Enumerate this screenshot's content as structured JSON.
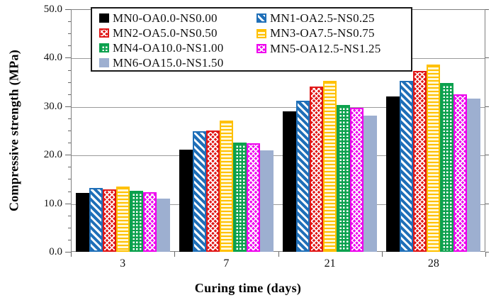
{
  "chart_data": {
    "type": "bar",
    "title": "",
    "xlabel": "Curing time (days)",
    "ylabel": "Compressive strength (MPa)",
    "categories": [
      "3",
      "7",
      "21",
      "28"
    ],
    "series": [
      {
        "name": "MN0-OA0.0-NS0.00",
        "color": "#000000",
        "pattern": "solid",
        "values": [
          12.1,
          21.0,
          29.0,
          32.0
        ]
      },
      {
        "name": "MN1-OA2.5-NS0.25",
        "color": "#1F6FB8",
        "pattern": "diagonal-stripe",
        "values": [
          13.2,
          24.8,
          31.2,
          35.3
        ]
      },
      {
        "name": "MN2-OA5.0-NS0.50",
        "color": "#E01818",
        "pattern": "diamond-lattice",
        "values": [
          12.9,
          25.0,
          34.0,
          37.3
        ]
      },
      {
        "name": "MN3-OA7.5-NS0.75",
        "color": "#FFC000",
        "pattern": "horizontal-stripe",
        "light": "#FFF8D6",
        "values": [
          13.4,
          27.0,
          35.2,
          38.6
        ]
      },
      {
        "name": "MN4-OA10.0-NS1.00",
        "color": "#0CA14E",
        "pattern": "grid",
        "values": [
          12.6,
          22.5,
          30.2,
          34.8
        ]
      },
      {
        "name": "MN5-OA12.5-NS1.25",
        "color": "#EE00EE",
        "pattern": "diamond-lattice",
        "values": [
          12.3,
          22.4,
          29.7,
          32.5
        ]
      },
      {
        "name": "MN6-OA15.0-NS1.50",
        "color": "#9DAFD0",
        "pattern": "solid",
        "values": [
          11.0,
          20.9,
          28.0,
          31.6
        ]
      }
    ],
    "ylim": [
      0,
      50
    ],
    "y_major_tick_labels": [
      "0.0",
      "10.0",
      "20.0",
      "30.0",
      "40.0",
      "50.0"
    ],
    "y_major_step": 10,
    "y_minor_step": 2.5,
    "grid": true,
    "legend_position": "top-inside",
    "legend_column_order": [
      [
        0,
        2,
        4,
        6
      ],
      [
        1,
        3,
        5
      ]
    ]
  }
}
